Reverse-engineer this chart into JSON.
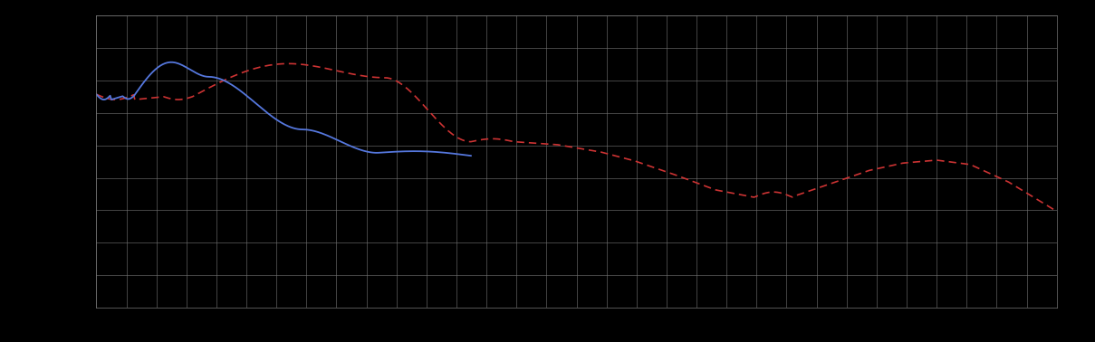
{
  "background_color": "#000000",
  "grid_color": "#777777",
  "blue_line_color": "#5577dd",
  "red_line_color": "#cc3333",
  "fig_width": 12.09,
  "fig_height": 3.78,
  "dpi": 100,
  "grid_xticks": 32,
  "grid_yticks": 9
}
